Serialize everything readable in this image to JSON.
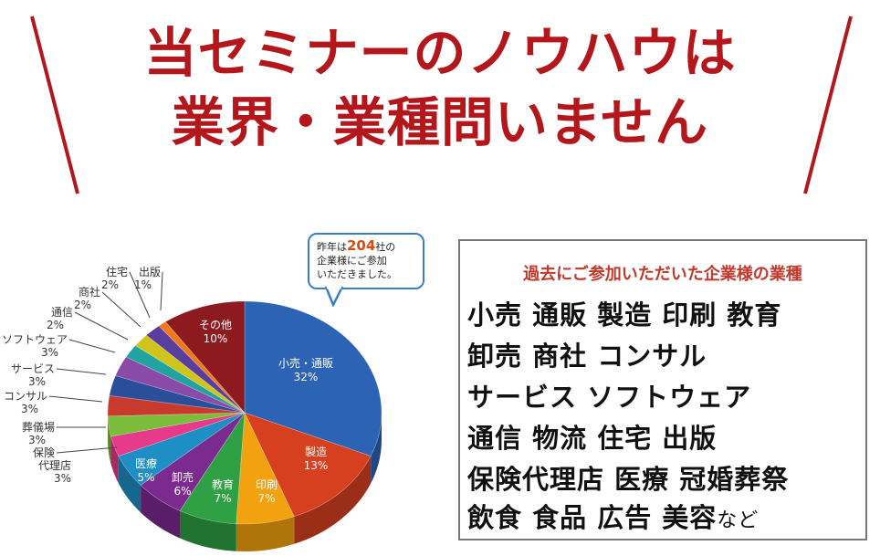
{
  "headline": {
    "line1": "当セミナーのノウハウは",
    "line2": "業界・業種問いません"
  },
  "bubble": {
    "pre": "昨年は",
    "count": "204",
    "post1": "社の",
    "line2": "企業様にご参加",
    "line3": "いただきました。"
  },
  "industries": {
    "title": "過去にご参加いただいた企業様の業種",
    "lines": [
      "小売 通販 製造 印刷 教育",
      "卸売 商社 コンサル",
      "サービス ソフトウェア",
      "通信 物流 住宅 出版",
      "保険代理店 医療 冠婚葬祭",
      "飲食 食品 広告 美容"
    ],
    "suffix": "など"
  },
  "chart_data": {
    "type": "pie",
    "title": "",
    "slices": [
      {
        "label": "小売・通販",
        "value": 32,
        "color": "#2d63b5"
      },
      {
        "label": "製造",
        "value": 13,
        "color": "#d7401f"
      },
      {
        "label": "印刷",
        "value": 7,
        "color": "#f3a20f"
      },
      {
        "label": "教育",
        "value": 7,
        "color": "#2fa043"
      },
      {
        "label": "卸売",
        "value": 6,
        "color": "#7b2a8f"
      },
      {
        "label": "医療",
        "value": 5,
        "color": "#1d8fc4"
      },
      {
        "label": "保険代理店",
        "value": 3,
        "color": "#e63a8a"
      },
      {
        "label": "葬儀場",
        "value": 3,
        "color": "#7bbd3a"
      },
      {
        "label": "コンサル",
        "value": 3,
        "color": "#c93a2e"
      },
      {
        "label": "サービス",
        "value": 3,
        "color": "#2b4e9b"
      },
      {
        "label": "ソフトウェア",
        "value": 3,
        "color": "#8a4aa8"
      },
      {
        "label": "通信",
        "value": 2,
        "color": "#21a3a0"
      },
      {
        "label": "商社",
        "value": 2,
        "color": "#d0c41a"
      },
      {
        "label": "住宅",
        "value": 2,
        "color": "#5a3e9e"
      },
      {
        "label": "出版",
        "value": 1,
        "color": "#f07a1a"
      },
      {
        "label": "その他",
        "value": 10,
        "color": "#8c1a1e"
      }
    ],
    "labels": [
      {
        "name": "小売・通販",
        "pct": "32%"
      },
      {
        "name": "製造",
        "pct": "13%"
      },
      {
        "name": "印刷",
        "pct": "7%"
      },
      {
        "name": "教育",
        "pct": "7%"
      },
      {
        "name": "卸売",
        "pct": "6%"
      },
      {
        "name": "医療",
        "pct": "5%"
      },
      {
        "name": "保険",
        "name2": "代理店",
        "pct": "3%"
      },
      {
        "name": "葬儀場",
        "pct": "3%"
      },
      {
        "name": "コンサル",
        "pct": "3%"
      },
      {
        "name": "サービス",
        "pct": "3%"
      },
      {
        "name": "ソフトウェア",
        "pct": "3%"
      },
      {
        "name": "通信",
        "pct": "2%"
      },
      {
        "name": "商社",
        "pct": "2%"
      },
      {
        "name": "住宅",
        "pct": "2%"
      },
      {
        "name": "出版",
        "pct": "1%"
      },
      {
        "name": "その他",
        "pct": "10%"
      }
    ]
  }
}
